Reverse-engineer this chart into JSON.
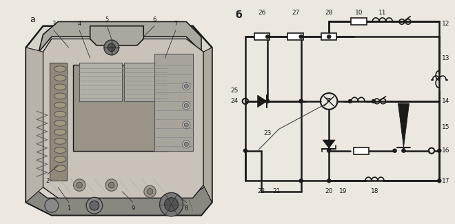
{
  "bg_color": "#ece8e0",
  "line_color": "#1a1a1a",
  "fig_width": 6.6,
  "fig_height": 3.25,
  "dpi": 100,
  "left_bg": "#d8d3ca",
  "inner_bg": "#c8c2b8",
  "dark_gray": "#888880",
  "mid_gray": "#aaa89e",
  "light_gray": "#bfbcb4"
}
